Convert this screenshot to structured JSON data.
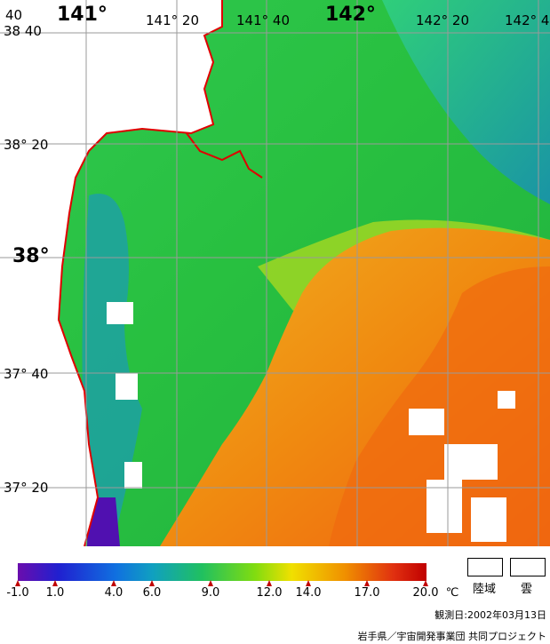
{
  "map": {
    "lon_labels": [
      "141°",
      "141° 20",
      "141° 40",
      "142°",
      "142° 20",
      "142° 4"
    ],
    "lat_labels": [
      "38  40",
      "38° 20",
      "38°",
      "37° 40",
      "37° 20"
    ],
    "corner_label": "40",
    "colors": {
      "land": "#ffffff",
      "coast": "#e00000",
      "grid": "#9a9a9a"
    }
  },
  "legend": {
    "ticks": [
      "-1.0",
      "1.0",
      "4.0",
      "6.0",
      "9.0",
      "12.0",
      "14.0",
      "17.0",
      "20.0"
    ],
    "unit": "℃",
    "land_label": "陸域",
    "cloud_label": "雲",
    "colorscale": [
      "#6a0dad",
      "#2020d0",
      "#1070e0",
      "#10a0c0",
      "#20c060",
      "#40d020",
      "#a0e000",
      "#f0e000",
      "#f0a000",
      "#f07010",
      "#e03010",
      "#c00000"
    ]
  },
  "footer": {
    "observation_date": "観測日:2002年03月13日",
    "credit": "岩手県／宇宙開発事業団 共同プロジェクト"
  }
}
